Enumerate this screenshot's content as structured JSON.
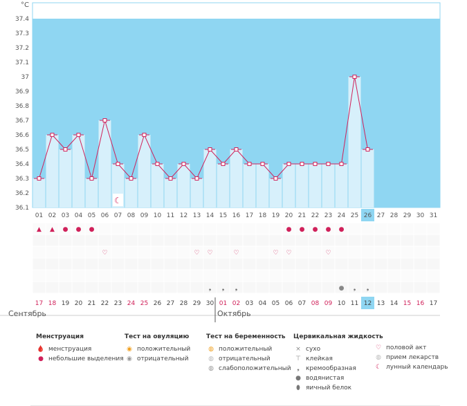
{
  "chart_data": {
    "type": "line",
    "unit": "°C",
    "ylim": [
      36.1,
      37.5
    ],
    "y_ticks": [
      "37.4",
      "37.3",
      "37.2",
      "37.1",
      "37",
      "36.9",
      "36.8",
      "36.7",
      "36.6",
      "36.5",
      "36.4",
      "36.3",
      "36.2",
      "36.1"
    ],
    "cycle_days": [
      "01",
      "02",
      "03",
      "04",
      "05",
      "06",
      "07",
      "08",
      "09",
      "10",
      "11",
      "12",
      "13",
      "14",
      "15",
      "16",
      "17",
      "18",
      "19",
      "20",
      "21",
      "22",
      "23",
      "24",
      "25",
      "26",
      "27",
      "28",
      "29",
      "30",
      "31"
    ],
    "temperatures": [
      36.3,
      36.6,
      36.5,
      36.6,
      36.3,
      36.7,
      36.4,
      36.3,
      36.6,
      36.4,
      36.3,
      36.4,
      36.3,
      36.5,
      36.4,
      36.5,
      36.4,
      36.4,
      36.3,
      36.4,
      36.4,
      36.4,
      36.4,
      36.4,
      37.0,
      36.5
    ],
    "current_day": "26",
    "calendar_dates": [
      "17",
      "18",
      "19",
      "20",
      "21",
      "22",
      "23",
      "24",
      "25",
      "26",
      "27",
      "28",
      "29",
      "30",
      "01",
      "02",
      "03",
      "04",
      "05",
      "06",
      "07",
      "08",
      "09",
      "10",
      "11",
      "12",
      "13",
      "14",
      "15",
      "16",
      "17"
    ],
    "weekend_dates_idx": [
      0,
      1,
      7,
      8,
      14,
      15,
      21,
      22,
      28,
      29
    ],
    "current_date": "12",
    "months": [
      "Сентябрь",
      "Октябрь"
    ],
    "markers": {
      "menstruation": [
        1,
        2
      ],
      "light_discharge": [
        3,
        4,
        5,
        20,
        21,
        22,
        23,
        24
      ],
      "sex": [
        6,
        13,
        14,
        16,
        19,
        20,
        23
      ],
      "watery": [
        24
      ],
      "creamy": [
        14,
        15,
        16,
        25,
        26
      ],
      "lunar": [
        7
      ]
    },
    "legend": {
      "menstruation": {
        "title": "Менструация",
        "items": [
          "менструация",
          "небольшие выделения"
        ]
      },
      "ovulation_test": {
        "title": "Тест на овуляцию",
        "items": [
          "положительный",
          "отрицательный"
        ]
      },
      "pregnancy_test": {
        "title": "Тест на беременность",
        "items": [
          "положительный",
          "отрицательный",
          "слабоположительный"
        ]
      },
      "cervical": {
        "title": "Цервикальная жидкость",
        "items": [
          "сухо",
          "клейкая",
          "кремообразная",
          "водянистая",
          "яичный белок"
        ]
      },
      "other": [
        "половой акт",
        "прием лекарств",
        "лунный календарь"
      ]
    },
    "colors": {
      "background": "#8fd6f2",
      "bar": "#d7f0fb",
      "line": "#d0215a",
      "current": "#8fd6f2",
      "weekend": "#d0215a"
    }
  }
}
